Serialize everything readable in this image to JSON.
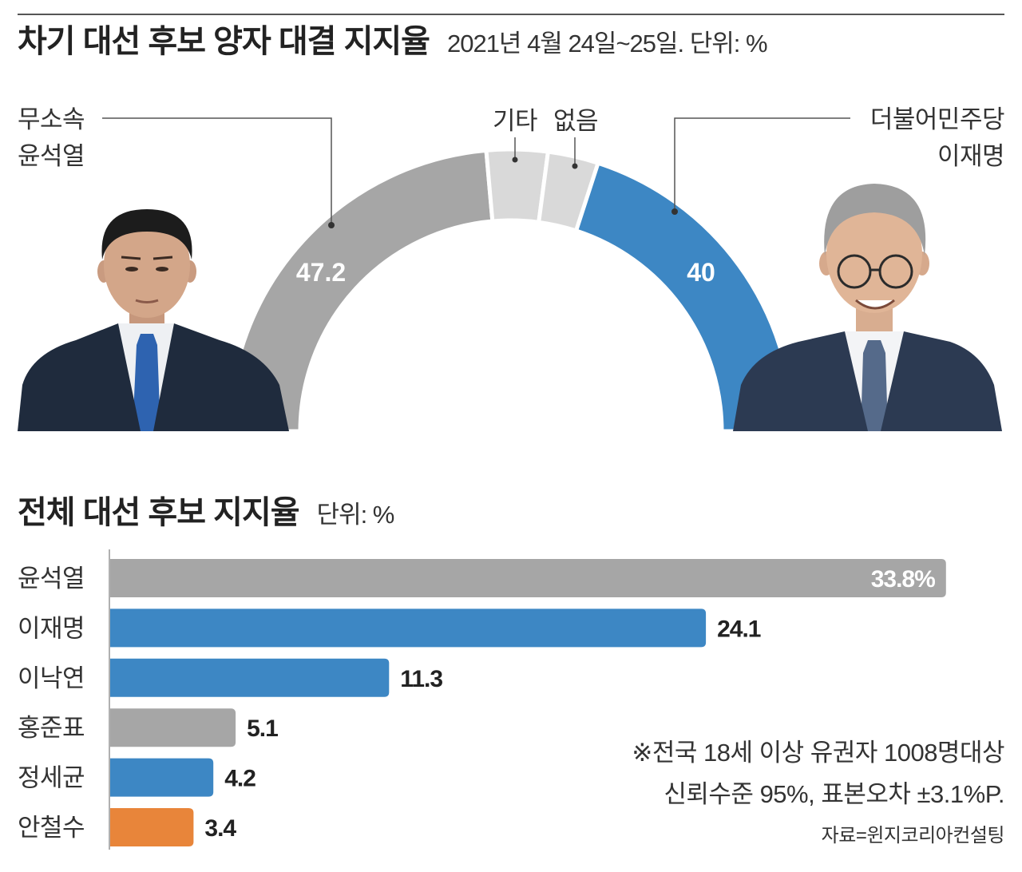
{
  "colors": {
    "gray": "#a6a6a6",
    "light_gray": "#d9d9d9",
    "blue": "#3d87c4",
    "orange": "#e8853a",
    "text": "#222222"
  },
  "chart_data": [
    {
      "type": "pie",
      "shape": "half-donut",
      "title": "차기 대선 후보 양자 대결 지지율",
      "subtitle": "2021년 4월 24일~25일. 단위: %",
      "slices": [
        {
          "party": "무소속",
          "name": "윤석열",
          "value": 47.2,
          "value_label": "47.2",
          "color": "#a6a6a6"
        },
        {
          "name": "기타",
          "value": 7.0,
          "color": "#d9d9d9"
        },
        {
          "name": "없음",
          "value": 5.8,
          "color": "#d9d9d9"
        },
        {
          "party": "더불어민주당",
          "name": "이재명",
          "value": 40,
          "value_label": "40",
          "color": "#3d87c4"
        }
      ]
    },
    {
      "type": "bar",
      "orientation": "horizontal",
      "title": "전체 대선 후보 지지율",
      "subtitle": "단위: %",
      "categories": [
        "윤석열",
        "이재명",
        "이낙연",
        "홍준표",
        "정세균",
        "안철수"
      ],
      "values": [
        33.8,
        24.1,
        11.3,
        5.1,
        4.2,
        3.4
      ],
      "value_labels": [
        "33.8%",
        "24.1",
        "11.3",
        "5.1",
        "4.2",
        "3.4"
      ],
      "colors": [
        "#a6a6a6",
        "#3d87c4",
        "#3d87c4",
        "#a6a6a6",
        "#3d87c4",
        "#e8853a"
      ]
    }
  ],
  "notes": {
    "sample": "※전국 18세 이상 유권자 1008명대상",
    "margin": "신뢰수준 95%, 표본오차 ±3.1%P.",
    "source": "자료=윈지코리아컨설팅"
  }
}
